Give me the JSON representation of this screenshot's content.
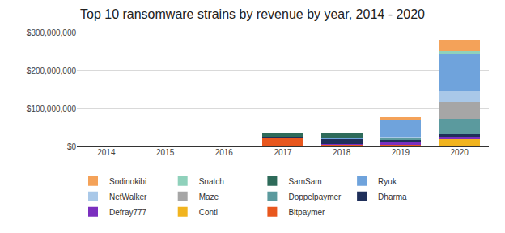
{
  "chart_data": {
    "type": "bar",
    "title": "Top 10 ransomware strains by revenue by year, 2014 - 2020",
    "categories": [
      "2014",
      "2015",
      "2016",
      "2017",
      "2018",
      "2019",
      "2020"
    ],
    "stacked": true,
    "grid": true,
    "legend": "bottom",
    "ylim": [
      0,
      300000000
    ],
    "yticks": [
      {
        "value": 0,
        "label": "$0"
      },
      {
        "value": 100000000,
        "label": "$100,000,000"
      },
      {
        "value": 200000000,
        "label": "$200,000,000"
      },
      {
        "value": 300000000,
        "label": "$300,000,000"
      }
    ],
    "series": [
      {
        "name": "Bitpaymer",
        "color": "#e8571e",
        "values": [
          0,
          0,
          0,
          22000000,
          5000000,
          4000000,
          0
        ]
      },
      {
        "name": "Conti",
        "color": "#f1b41f",
        "values": [
          0,
          0,
          0,
          0,
          0,
          0,
          20000000
        ]
      },
      {
        "name": "Defray777",
        "color": "#7b2fbf",
        "values": [
          0,
          0,
          0,
          0,
          2000000,
          8000000,
          6000000
        ]
      },
      {
        "name": "Dharma",
        "color": "#1f2f5a",
        "values": [
          0,
          0,
          0,
          4000000,
          12000000,
          6000000,
          5000000
        ]
      },
      {
        "name": "Doppelpaymer",
        "color": "#5b9a9e",
        "values": [
          0,
          0,
          0,
          0,
          0,
          3000000,
          41000000
        ]
      },
      {
        "name": "Maze",
        "color": "#a6a6a6",
        "values": [
          0,
          0,
          0,
          0,
          0,
          3000000,
          45000000
        ]
      },
      {
        "name": "NetWalker",
        "color": "#a9c8e8",
        "values": [
          0,
          0,
          0,
          0,
          0,
          2000000,
          30000000
        ]
      },
      {
        "name": "Ryuk",
        "color": "#6fa3dc",
        "values": [
          0,
          0,
          0,
          0,
          4000000,
          44000000,
          95000000
        ]
      },
      {
        "name": "SamSam",
        "color": "#2e6b5a",
        "values": [
          0,
          0,
          3000000,
          9000000,
          12000000,
          0,
          0
        ]
      },
      {
        "name": "Snatch",
        "color": "#8fd1bb",
        "values": [
          0,
          0,
          0,
          0,
          0,
          0,
          10000000
        ]
      },
      {
        "name": "Sodinokibi",
        "color": "#f4a259",
        "values": [
          0,
          0,
          0,
          0,
          0,
          6000000,
          26000000
        ]
      }
    ]
  }
}
